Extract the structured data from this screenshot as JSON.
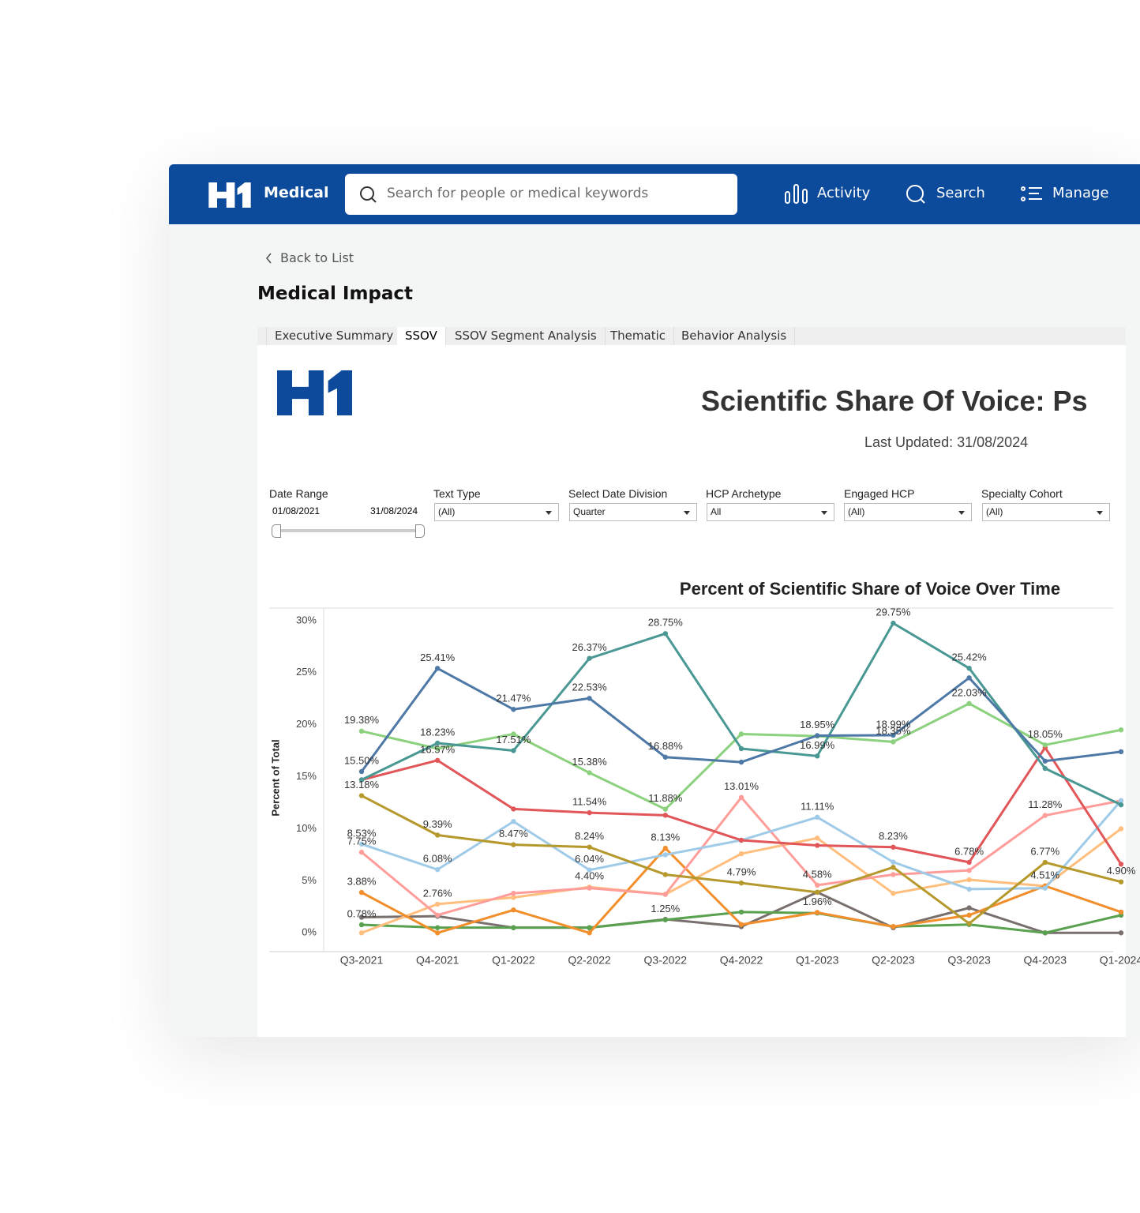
{
  "header": {
    "brand": "Medical",
    "search_placeholder": "Search for people or medical keywords",
    "nav": [
      "Activity",
      "Search",
      "Manage"
    ]
  },
  "back_link": "Back to List",
  "page_title": "Medical Impact",
  "tabs": [
    "Executive Summary",
    "SSOV",
    "SSOV Segment Analysis",
    "Thematic",
    "Behavior Analysis"
  ],
  "dashboard": {
    "title": "Scientific Share Of Voice: Ps",
    "last_updated": "Last Updated: 31/08/2024",
    "date_range": {
      "label": "Date Range",
      "start": "01/08/2021",
      "end": "31/08/2024"
    },
    "filters": [
      {
        "label": "Text Type",
        "value": "(All)"
      },
      {
        "label": "Select Date Division",
        "value": "Quarter"
      },
      {
        "label": "HCP Archetype",
        "value": "All"
      },
      {
        "label": "Engaged HCP",
        "value": "(All)"
      },
      {
        "label": "Specialty Cohort",
        "value": "(All)"
      }
    ]
  },
  "chart_data": {
    "type": "line",
    "title": "Percent of Scientific Share of Voice Over Time",
    "y_label": "Percent of Total",
    "categories": [
      "Q3-2021",
      "Q4-2021",
      "Q1-2022",
      "Q2-2022",
      "Q3-2022",
      "Q4-2022",
      "Q1-2023",
      "Q2-2023",
      "Q3-2023",
      "Q4-2023",
      "Q1-2024"
    ],
    "ylim": [
      -1.8,
      31.2
    ],
    "yticks": [
      {
        "value": 0,
        "label": "0%"
      },
      {
        "value": 5,
        "label": "5%"
      },
      {
        "value": 10,
        "label": "10%"
      },
      {
        "value": 15,
        "label": "15%"
      },
      {
        "value": 20,
        "label": "20%"
      },
      {
        "value": 25,
        "label": "25%"
      },
      {
        "value": 30,
        "label": "30%"
      }
    ],
    "grid": false,
    "series": [
      {
        "color": "#79706e",
        "values": [
          1.5,
          1.6,
          0.5,
          0.5,
          1.3,
          0.6,
          3.9,
          0.5,
          2.4,
          0,
          0
        ]
      },
      {
        "color": "#59a14f",
        "values": [
          0.78,
          0.5,
          0.5,
          0.5,
          1.25,
          2.0,
          1.9,
          0.6,
          0.8,
          0,
          1.7
        ],
        "value_labels": [
          "0.78%",
          null,
          null,
          null,
          "1.25%",
          null,
          null,
          null,
          null,
          null,
          null
        ]
      },
      {
        "color": "#ffbe7d",
        "values": [
          0,
          2.76,
          3.4,
          4.4,
          3.7,
          7.6,
          9.1,
          3.8,
          5.1,
          4.5,
          10
        ],
        "value_labels": [
          null,
          "2.76%",
          null,
          "4.40%",
          null,
          null,
          null,
          null,
          null,
          null,
          null
        ]
      },
      {
        "color": "#f28e2b",
        "values": [
          3.88,
          0,
          2.2,
          0,
          8.13,
          0.8,
          1.96,
          0.6,
          1.7,
          4.51,
          2.0
        ],
        "value_labels": [
          "3.88%",
          null,
          null,
          null,
          "8.13%",
          null,
          "1.96%",
          null,
          null,
          "4.51%",
          null
        ]
      },
      {
        "color": "#ff9d9a",
        "values": [
          7.75,
          1.7,
          3.8,
          4.3,
          3.7,
          13.01,
          4.58,
          5.6,
          6.0,
          11.28,
          12.7
        ],
        "value_labels": [
          "7.75%",
          null,
          null,
          null,
          null,
          "13.01%",
          "4.58%",
          null,
          null,
          "11.28%",
          null
        ]
      },
      {
        "color": "#a0cbe8",
        "values": [
          8.53,
          6.08,
          10.7,
          6.04,
          7.5,
          8.9,
          11.11,
          6.8,
          4.2,
          4.3,
          12.7
        ],
        "value_labels": [
          "8.53%",
          "6.08%",
          null,
          "6.04%",
          null,
          null,
          "11.11%",
          null,
          null,
          null,
          null
        ]
      },
      {
        "color": "#b6992d",
        "values": [
          13.18,
          9.39,
          8.47,
          8.24,
          5.6,
          4.79,
          3.9,
          6.3,
          0.9,
          6.77,
          4.9
        ],
        "value_labels": [
          "13.18%",
          "9.39%",
          "8.47%",
          "8.24%",
          null,
          "4.79%",
          null,
          null,
          null,
          "6.77%",
          "4.90%"
        ]
      },
      {
        "color": "#e15759",
        "values": [
          14.7,
          16.57,
          11.9,
          11.54,
          11.3,
          8.9,
          8.4,
          8.23,
          6.78,
          17.8,
          6.6
        ],
        "value_labels": [
          null,
          "16.57%",
          null,
          "11.54%",
          null,
          null,
          null,
          "8.23%",
          "6.78%",
          null,
          null
        ]
      },
      {
        "color": "#8cd17d",
        "values": [
          19.38,
          17.7,
          19.1,
          15.38,
          11.88,
          19.1,
          18.9,
          18.35,
          22.03,
          18.05,
          19.5
        ],
        "value_labels": [
          "19.38%",
          null,
          null,
          "15.38%",
          "11.88%",
          null,
          null,
          "18.35%",
          "22.03%",
          "18.05%",
          null
        ]
      },
      {
        "color": "#499894",
        "values": [
          14.7,
          18.23,
          17.51,
          26.37,
          28.75,
          17.7,
          16.99,
          29.75,
          25.42,
          15.8,
          12.3
        ],
        "value_labels": [
          null,
          "18.23%",
          "17.51%",
          "26.37%",
          "28.75%",
          null,
          "16.99%",
          "29.75%",
          "25.42%",
          null,
          null
        ]
      },
      {
        "color": "#4e79a7",
        "values": [
          15.5,
          25.41,
          21.47,
          22.53,
          16.88,
          16.4,
          18.95,
          18.99,
          24.5,
          16.5,
          17.4
        ],
        "value_labels": [
          "15.50%",
          "25.41%",
          "21.47%",
          "22.53%",
          "16.88%",
          null,
          "18.95%",
          "18.99%",
          null,
          null,
          null
        ]
      }
    ]
  }
}
